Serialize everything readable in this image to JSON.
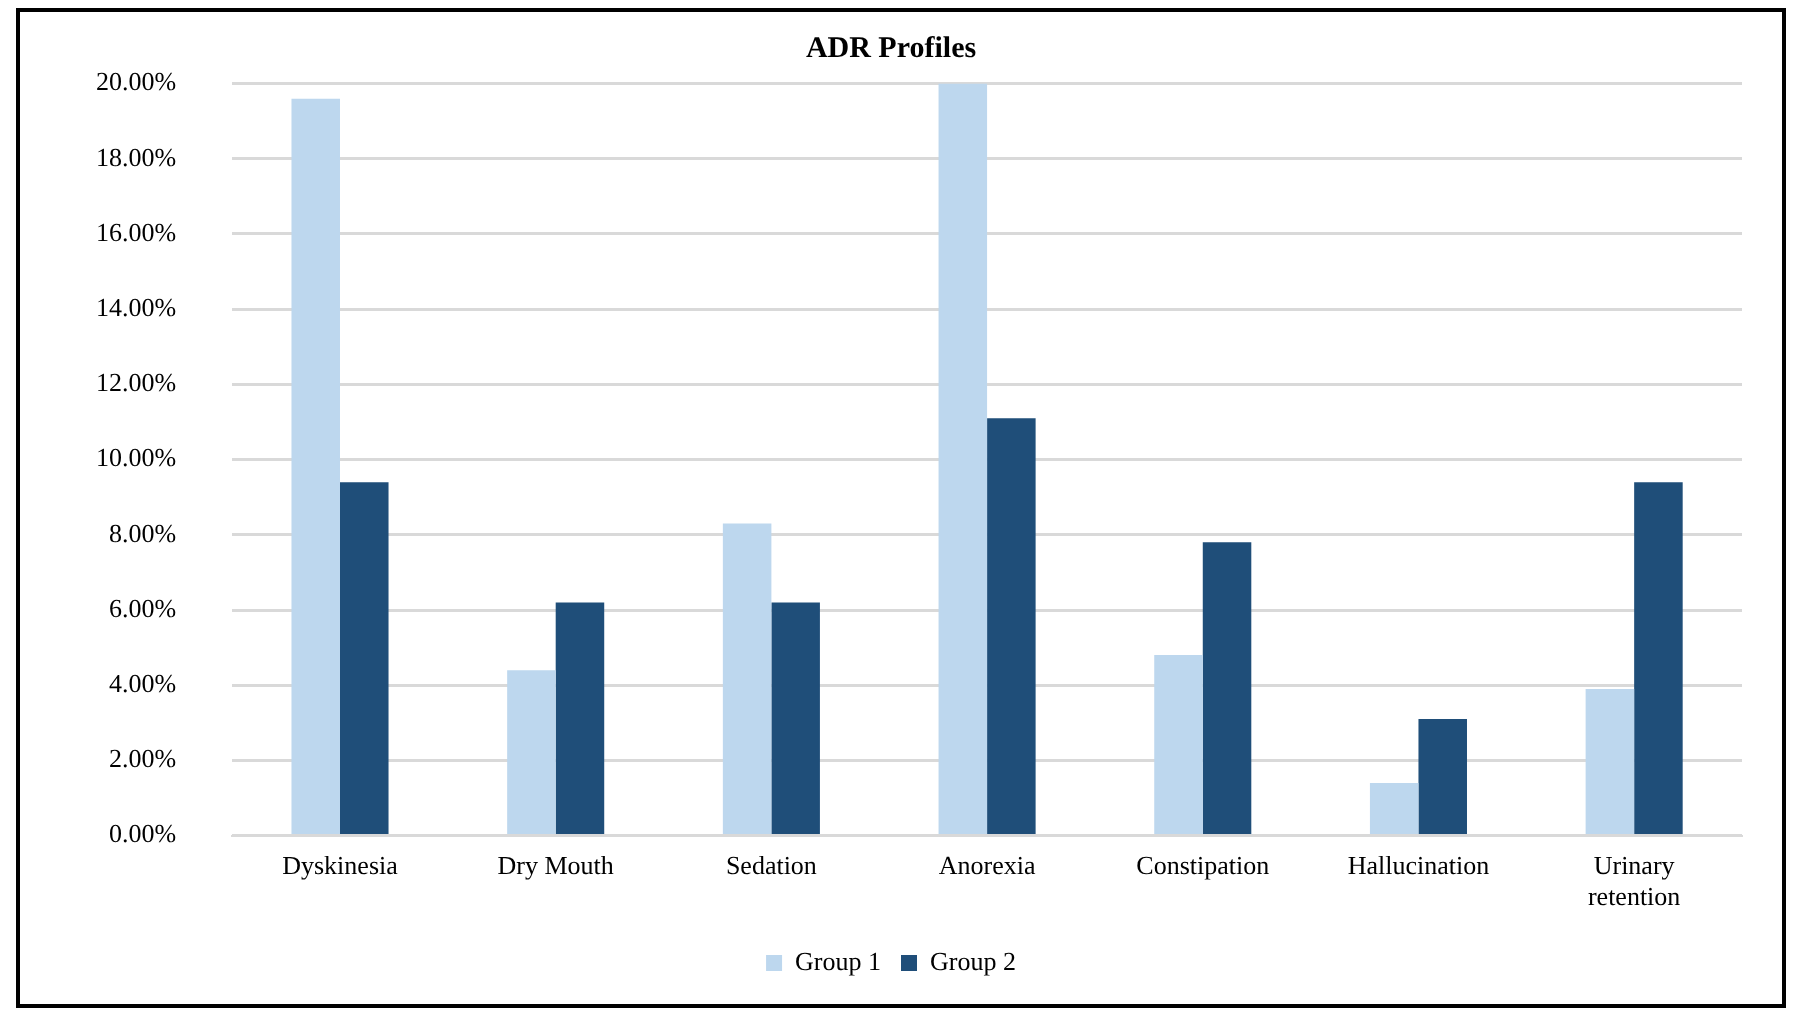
{
  "chart_data": {
    "type": "bar",
    "title": "ADR Profiles",
    "categories": [
      "Dyskinesia",
      "Dry Mouth",
      "Sedation",
      "Anorexia",
      "Constipation",
      "Hallucination",
      "Urinary retention"
    ],
    "series": [
      {
        "name": "Group 1",
        "color": "#bdd7ee",
        "values": [
          19.6,
          4.4,
          8.3,
          20.0,
          4.8,
          1.4,
          3.9
        ]
      },
      {
        "name": "Group 2",
        "color": "#1f4e79",
        "values": [
          9.4,
          6.2,
          6.2,
          11.1,
          7.8,
          3.1,
          9.4
        ]
      }
    ],
    "ylim": [
      0,
      20
    ],
    "yticks": [
      {
        "value": 0,
        "label": "0.00%"
      },
      {
        "value": 2,
        "label": "2.00%"
      },
      {
        "value": 4,
        "label": "4.00%"
      },
      {
        "value": 6,
        "label": "6.00%"
      },
      {
        "value": 8,
        "label": "8.00%"
      },
      {
        "value": 10,
        "label": "10.00%"
      },
      {
        "value": 12,
        "label": "12.00%"
      },
      {
        "value": 14,
        "label": "14.00%"
      },
      {
        "value": 16,
        "label": "16.00%"
      },
      {
        "value": 18,
        "label": "18.00%"
      },
      {
        "value": 20,
        "label": "20.00%"
      }
    ],
    "grid": "y",
    "legend": "bottom"
  }
}
